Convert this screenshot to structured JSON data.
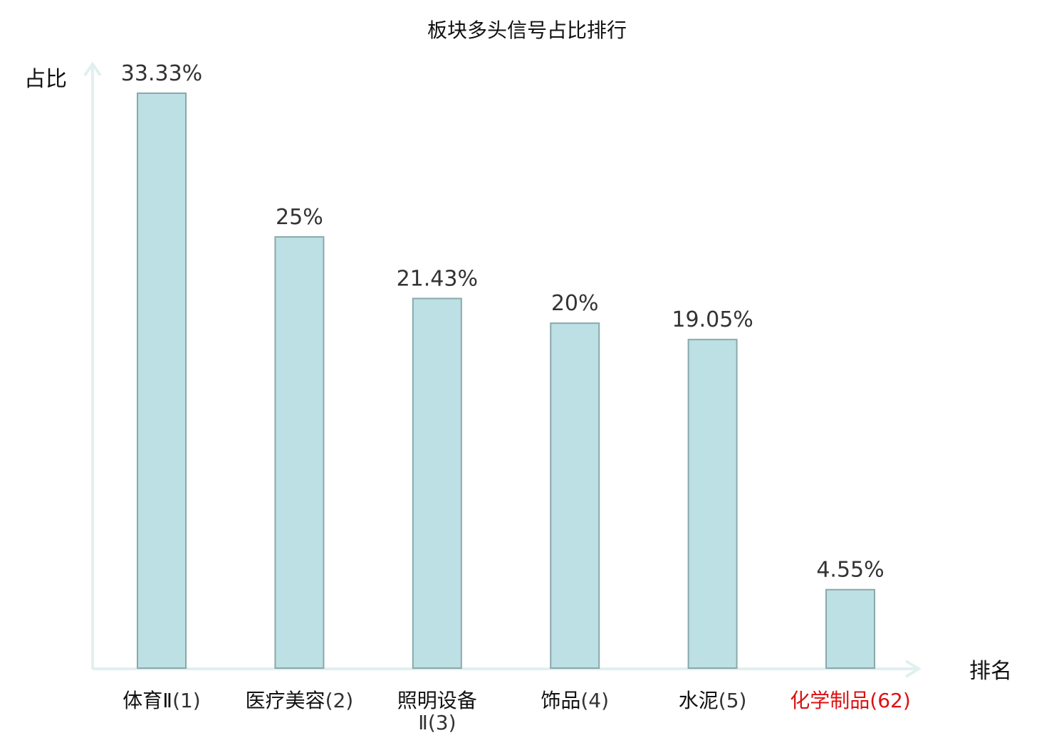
{
  "chart_data": {
    "type": "bar",
    "title": "板块多头信号占比排行",
    "xlabel": "排名",
    "ylabel": "占比",
    "categories": [
      {
        "name": "体育Ⅱ",
        "rank": "(1)",
        "highlight": false
      },
      {
        "name": "医疗美容",
        "rank": "(2)",
        "highlight": false
      },
      {
        "name": "照明设备Ⅱ",
        "rank": "(3)",
        "highlight": false,
        "line1": "照明设备",
        "line2": "Ⅱ(3)"
      },
      {
        "name": "饰品",
        "rank": "(4)",
        "highlight": false
      },
      {
        "name": "水泥",
        "rank": "(5)",
        "highlight": false
      },
      {
        "name": "化学制品",
        "rank": "(62)",
        "highlight": true
      }
    ],
    "values": [
      33.33,
      25,
      21.43,
      20,
      19.05,
      4.55
    ],
    "value_labels": [
      "33.33%",
      "25%",
      "21.43%",
      "20%",
      "19.05%",
      "4.55%"
    ],
    "ylim": [
      0,
      33.33
    ],
    "grid": false,
    "legend": "none"
  },
  "colors": {
    "bar_fill": "#bce0e3",
    "bar_stroke": "#8aa8ab",
    "axis": "#e0f0ee",
    "highlight_text": "#dd1111",
    "normal_text": "#111111",
    "rank_text": "#333333"
  }
}
